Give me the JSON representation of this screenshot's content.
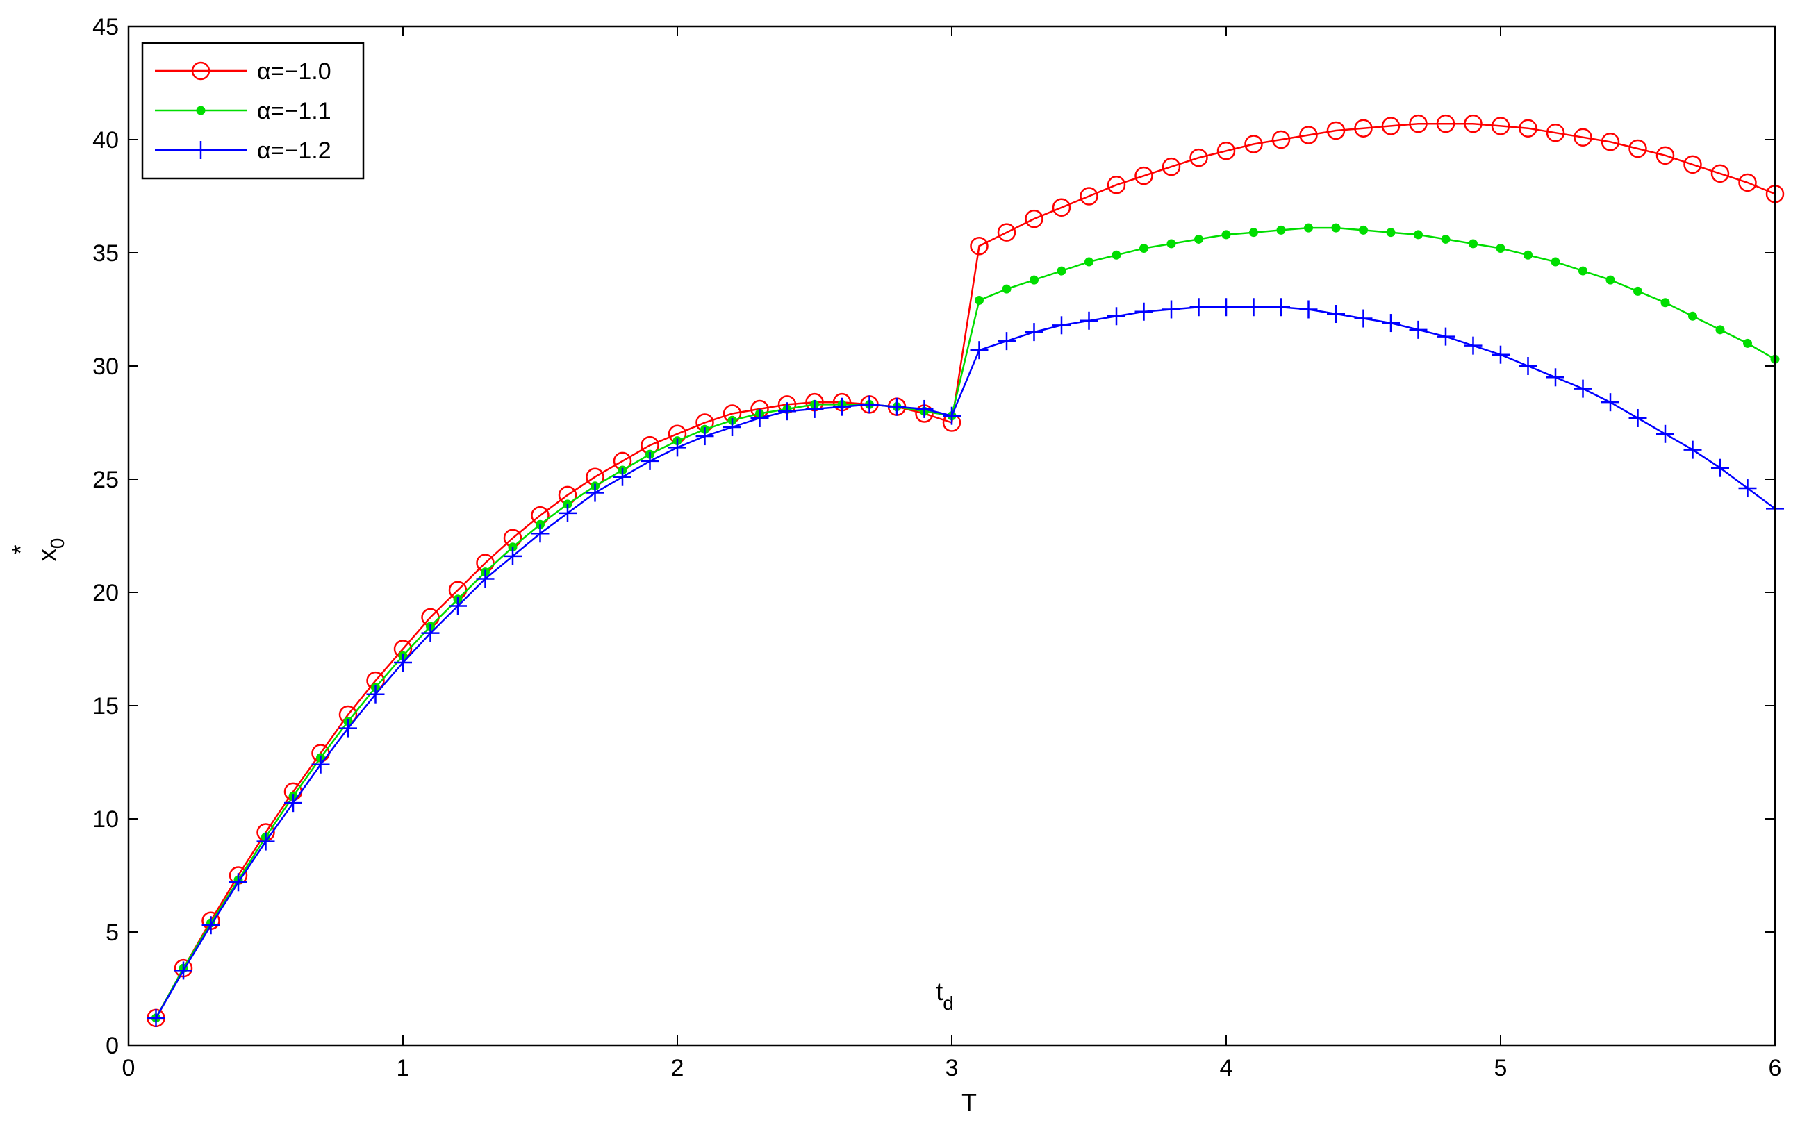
{
  "chart_data": {
    "type": "line",
    "title": "",
    "xlabel": "T",
    "ylabel": {
      "base": "x",
      "sub": "0",
      "sup": "*"
    },
    "annotation": {
      "base": "t",
      "sub": "d",
      "x": 3,
      "y": 2
    },
    "xlim": [
      0,
      6
    ],
    "ylim": [
      0,
      45
    ],
    "xticks": [
      0,
      1,
      2,
      3,
      4,
      5,
      6
    ],
    "yticks": [
      0,
      5,
      10,
      15,
      20,
      25,
      30,
      35,
      40,
      45
    ],
    "grid": false,
    "legend_position": "top-left",
    "x": [
      0.1,
      0.2,
      0.3,
      0.4,
      0.5,
      0.6,
      0.7,
      0.8,
      0.9,
      1.0,
      1.1,
      1.2,
      1.3,
      1.4,
      1.5,
      1.6,
      1.7,
      1.8,
      1.9,
      2.0,
      2.1,
      2.2,
      2.3,
      2.4,
      2.5,
      2.6,
      2.7,
      2.8,
      2.9,
      3.0,
      3.1,
      3.2,
      3.3,
      3.4,
      3.5,
      3.6,
      3.7,
      3.8,
      3.9,
      4.0,
      4.1,
      4.2,
      4.3,
      4.4,
      4.5,
      4.6,
      4.7,
      4.8,
      4.9,
      5.0,
      5.1,
      5.2,
      5.3,
      5.4,
      5.5,
      5.6,
      5.7,
      5.8,
      5.9,
      6.0
    ],
    "series": [
      {
        "name": "α=−1.0",
        "color": "#ff0000",
        "marker": "circle",
        "values": [
          1.2,
          3.4,
          5.5,
          7.5,
          9.4,
          11.2,
          12.9,
          14.6,
          16.1,
          17.5,
          18.9,
          20.1,
          21.3,
          22.4,
          23.4,
          24.3,
          25.1,
          25.8,
          26.5,
          27.0,
          27.5,
          27.9,
          28.1,
          28.3,
          28.4,
          28.4,
          28.3,
          28.2,
          27.9,
          27.5,
          35.3,
          35.9,
          36.5,
          37.0,
          37.5,
          38.0,
          38.4,
          38.8,
          39.2,
          39.5,
          39.8,
          40.0,
          40.2,
          40.4,
          40.5,
          40.6,
          40.7,
          40.7,
          40.7,
          40.6,
          40.5,
          40.3,
          40.1,
          39.9,
          39.6,
          39.3,
          38.9,
          38.5,
          38.1,
          37.6
        ]
      },
      {
        "name": "α=−1.1",
        "color": "#00dd00",
        "marker": "dot",
        "values": [
          1.2,
          3.4,
          5.4,
          7.3,
          9.2,
          11.0,
          12.7,
          14.3,
          15.8,
          17.2,
          18.5,
          19.7,
          20.9,
          22.0,
          23.0,
          23.9,
          24.7,
          25.4,
          26.1,
          26.7,
          27.2,
          27.6,
          27.9,
          28.1,
          28.3,
          28.3,
          28.3,
          28.2,
          28.0,
          27.8,
          32.9,
          33.4,
          33.8,
          34.2,
          34.6,
          34.9,
          35.2,
          35.4,
          35.6,
          35.8,
          35.9,
          36.0,
          36.1,
          36.1,
          36.0,
          35.9,
          35.8,
          35.6,
          35.4,
          35.2,
          34.9,
          34.6,
          34.2,
          33.8,
          33.3,
          32.8,
          32.2,
          31.6,
          31.0,
          30.3
        ]
      },
      {
        "name": "α=−1.2",
        "color": "#0000ff",
        "marker": "plus",
        "values": [
          1.2,
          3.3,
          5.3,
          7.2,
          9.0,
          10.7,
          12.4,
          14.0,
          15.5,
          16.9,
          18.2,
          19.4,
          20.6,
          21.6,
          22.6,
          23.5,
          24.4,
          25.1,
          25.8,
          26.4,
          26.9,
          27.3,
          27.7,
          28.0,
          28.1,
          28.2,
          28.3,
          28.2,
          28.1,
          27.8,
          30.7,
          31.1,
          31.5,
          31.8,
          32.0,
          32.2,
          32.4,
          32.5,
          32.6,
          32.6,
          32.6,
          32.6,
          32.5,
          32.3,
          32.1,
          31.9,
          31.6,
          31.3,
          30.9,
          30.5,
          30.0,
          29.5,
          29.0,
          28.4,
          27.7,
          27.0,
          26.3,
          25.5,
          24.6,
          23.7
        ]
      }
    ]
  }
}
